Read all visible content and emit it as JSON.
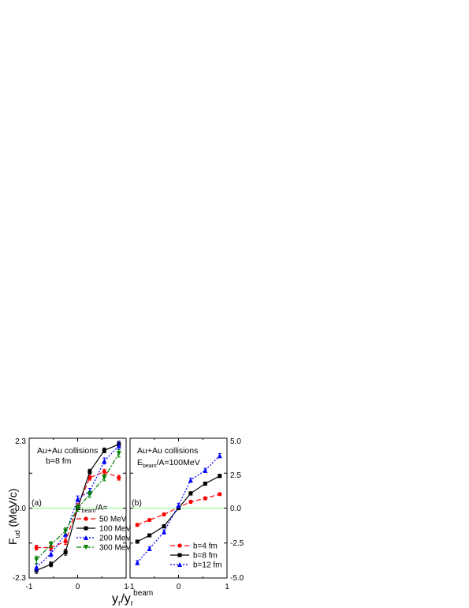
{
  "figure": {
    "xlabel_main": "y",
    "xlabel_sub": "r",
    "xlabel_sep": "/y",
    "xlabel_sub2": "r",
    "xlabel_sup2": "beam",
    "ylabel_main": "F",
    "ylabel_sub": "ud",
    "ylabel_unit": " (MeV/c)"
  },
  "panel_a": {
    "tag": "(a)",
    "title_line1": "Au+Au collisions",
    "title_line2": "b=8 fm",
    "legend_title_main": "E",
    "legend_title_sub": "beam",
    "legend_title_tail": "/A=",
    "yticks": [
      "2.3",
      "0.0",
      "-2.3"
    ],
    "xticks": [
      "-1",
      "0",
      "1"
    ]
  },
  "panel_b": {
    "tag": "(b)",
    "title_line1": "Au+Au collisions",
    "title_line2_main": "E",
    "title_line2_sub": "beam",
    "title_line2_tail": "/A=100MeV",
    "yticks": [
      "5.0",
      "2.5",
      "0.0",
      "-2.5",
      "-5.0"
    ],
    "xticks": [
      "-1",
      "0",
      "1"
    ]
  },
  "colors": {
    "red": "#ff0000",
    "black": "#000000",
    "blue": "#0000ff",
    "green": "#008000",
    "zero_line": "#7fff7f"
  },
  "chart_data": [
    {
      "type": "line",
      "xlabel": "y_r/y_r^beam",
      "ylabel": "F_ud (MeV/c)",
      "xlim": [
        -1,
        1
      ],
      "ylim": [
        -2.3,
        2.3
      ],
      "grid": false,
      "legend_position": "bottom-right",
      "x": [
        -0.85,
        -0.55,
        -0.25,
        0,
        0.25,
        0.55,
        0.85
      ],
      "series": [
        {
          "name": "50 MeV",
          "color": "#ff0000",
          "marker": "circle",
          "dash": "6,3",
          "values": [
            -1.3,
            -1.3,
            -1.1,
            0.05,
            1.0,
            1.2,
            1.0
          ],
          "err": [
            0.08,
            0.08,
            0.1,
            0.1,
            0.08,
            0.08,
            0.08
          ]
        },
        {
          "name": "100 MeV",
          "color": "#000000",
          "marker": "square",
          "dash": "",
          "values": [
            -2.05,
            -1.85,
            -1.45,
            0.0,
            1.2,
            1.9,
            2.1
          ],
          "err": [
            0.1,
            0.08,
            0.1,
            0.1,
            0.08,
            0.08,
            0.1
          ]
        },
        {
          "name": "200 MeV",
          "color": "#0000ff",
          "marker": "triangle-up",
          "dash": "2,2",
          "values": [
            -1.95,
            -1.5,
            -0.85,
            0.3,
            0.55,
            1.55,
            2.05
          ],
          "err": [
            0.12,
            0.1,
            0.1,
            0.1,
            0.1,
            0.1,
            0.12
          ]
        },
        {
          "name": "300 MeV",
          "color": "#008000",
          "marker": "triangle-down",
          "dash": "6,2,2,2",
          "values": [
            -1.7,
            -1.2,
            -0.75,
            0.0,
            0.45,
            1.0,
            1.8
          ],
          "err": [
            0.12,
            0.1,
            0.1,
            0.1,
            0.1,
            0.1,
            0.12
          ]
        }
      ]
    },
    {
      "type": "line",
      "xlabel": "y_r/y_r^beam",
      "ylabel": "F_ud (MeV/c)",
      "xlim": [
        -1,
        1
      ],
      "ylim": [
        -5.0,
        5.0
      ],
      "grid": false,
      "legend_position": "bottom-right",
      "x": [
        -0.85,
        -0.6,
        -0.3,
        0,
        0.25,
        0.55,
        0.85
      ],
      "series": [
        {
          "name": "b=4 fm",
          "color": "#ff0000",
          "marker": "circle",
          "dash": "6,3",
          "values": [
            -1.2,
            -0.85,
            -0.45,
            0.05,
            0.45,
            0.7,
            1.0
          ],
          "err": [
            0.1,
            0.1,
            0.1,
            0.1,
            0.1,
            0.1,
            0.1
          ]
        },
        {
          "name": "b=8 fm",
          "color": "#000000",
          "marker": "square",
          "dash": "",
          "values": [
            -2.4,
            -1.95,
            -1.3,
            0.0,
            1.05,
            1.75,
            2.3
          ],
          "err": [
            0.1,
            0.1,
            0.12,
            0.12,
            0.12,
            0.12,
            0.12
          ]
        },
        {
          "name": "b=12 fm",
          "color": "#0000ff",
          "marker": "triangle-up",
          "dash": "2,2",
          "values": [
            -3.9,
            -2.9,
            -1.7,
            0.2,
            2.0,
            2.7,
            3.75
          ],
          "err": [
            0.15,
            0.15,
            0.15,
            0.15,
            0.15,
            0.15,
            0.15
          ]
        }
      ]
    }
  ]
}
